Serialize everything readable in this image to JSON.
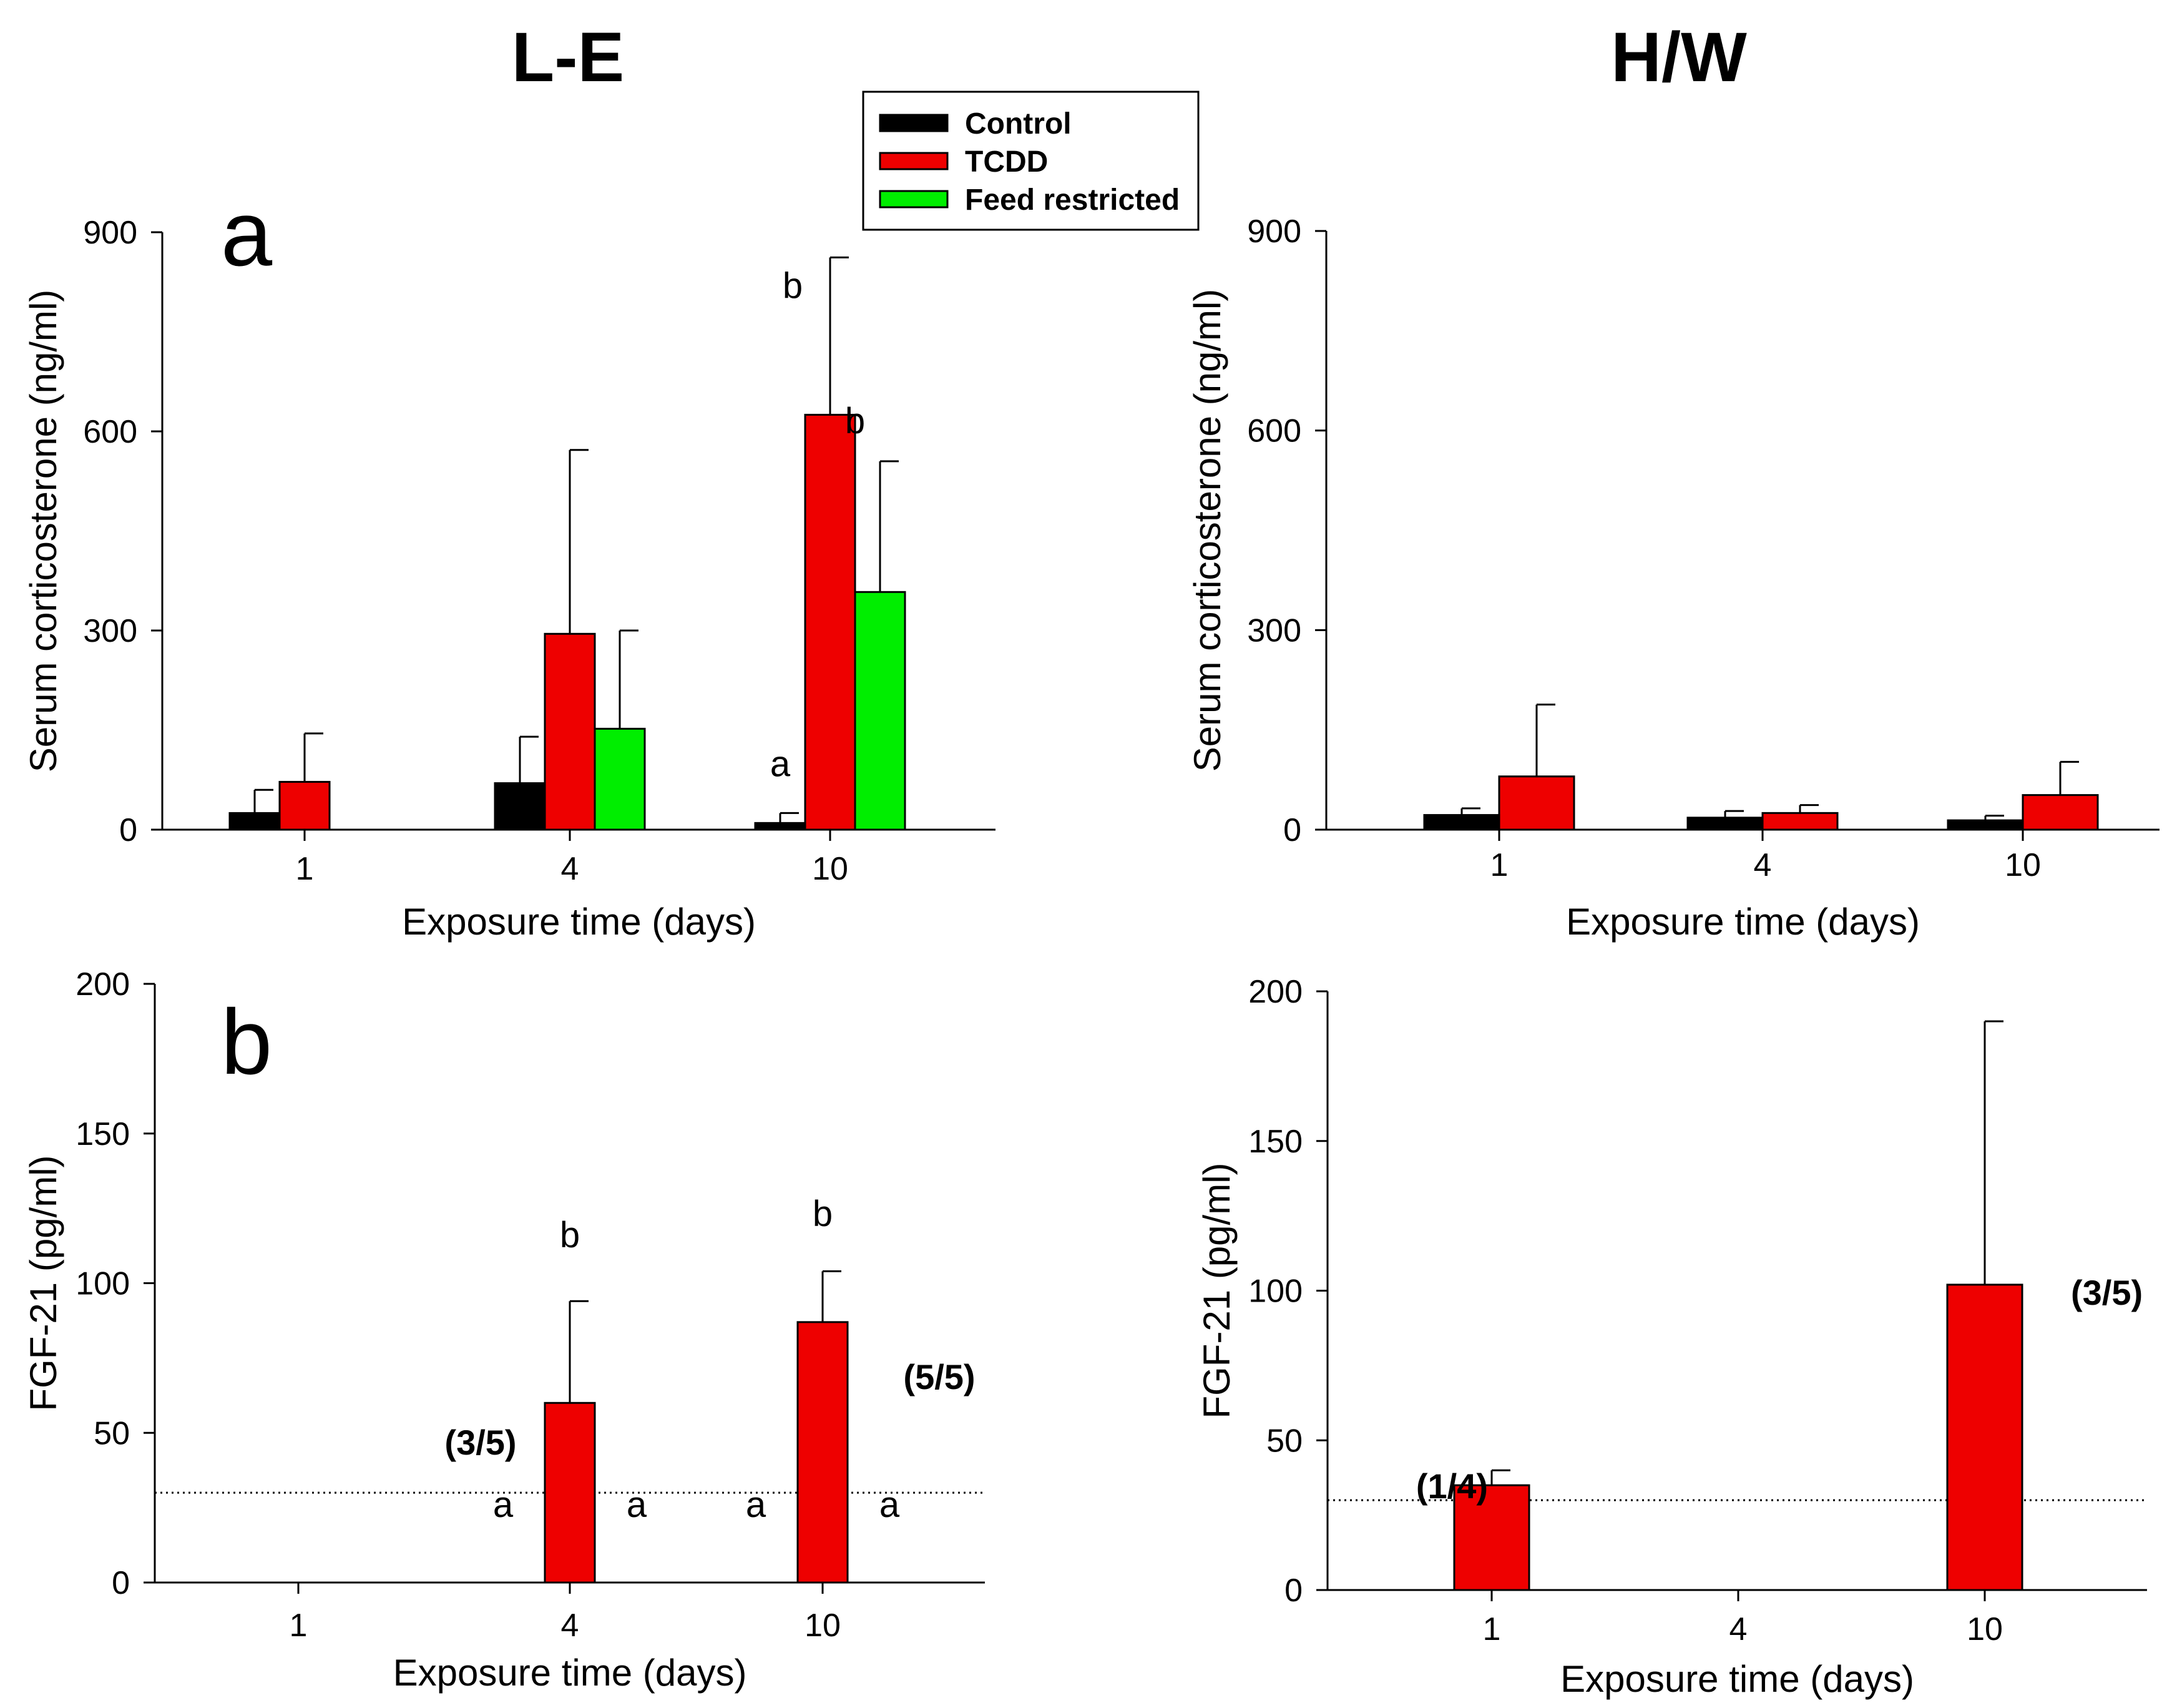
{
  "figure": {
    "column_titles": [
      "L-E",
      "H/W"
    ],
    "legend": {
      "items": [
        {
          "label": "Control",
          "color": "#000000"
        },
        {
          "label": "TCDD",
          "color": "#ee0000"
        },
        {
          "label": "Feed restricted",
          "color": "#00ee00"
        }
      ]
    }
  },
  "chart_data": [
    {
      "id": "le_cort",
      "type": "bar",
      "strain": "L-E",
      "panel_letter": "a",
      "ylabel": "Serum corticosterone (ng/ml)",
      "xlabel": "Exposure time (days)",
      "ylim": [
        0,
        900
      ],
      "yticks": [
        0,
        300,
        600,
        900
      ],
      "categories": [
        "1",
        "4",
        "10"
      ],
      "legend": "top-right",
      "series": [
        {
          "name": "Control",
          "color": "#000000",
          "values": [
            25,
            70,
            10
          ],
          "errors": [
            35,
            70,
            15
          ]
        },
        {
          "name": "TCDD",
          "color": "#ee0000",
          "values": [
            72,
            295,
            625
          ],
          "errors": [
            73,
            277,
            237
          ]
        },
        {
          "name": "Feed restricted",
          "color": "#00ee00",
          "values": [
            null,
            152,
            358
          ],
          "errors": [
            null,
            148,
            197
          ]
        }
      ],
      "annotations": [
        {
          "category": "10",
          "series": "Control",
          "text": "a"
        },
        {
          "category": "10",
          "series": "TCDD",
          "text": "b"
        },
        {
          "category": "10",
          "series": "Feed restricted",
          "text": "b"
        }
      ]
    },
    {
      "id": "hw_cort",
      "type": "bar",
      "strain": "H/W",
      "panel_letter": "",
      "ylabel": "Serum corticosterone (ng/ml)",
      "xlabel": "Exposure time (days)",
      "ylim": [
        0,
        900
      ],
      "yticks": [
        0,
        300,
        600,
        900
      ],
      "categories": [
        "1",
        "4",
        "10"
      ],
      "series": [
        {
          "name": "Control",
          "color": "#000000",
          "values": [
            22,
            18,
            14
          ],
          "errors": [
            10,
            10,
            7
          ]
        },
        {
          "name": "TCDD",
          "color": "#ee0000",
          "values": [
            80,
            25,
            52
          ],
          "errors": [
            108,
            12,
            50
          ]
        }
      ],
      "annotations": []
    },
    {
      "id": "le_fgf",
      "type": "bar",
      "strain": "L-E",
      "panel_letter": "b",
      "ylabel": "FGF-21 (pg/ml)",
      "xlabel": "Exposure time (days)",
      "ylim": [
        0,
        200
      ],
      "yticks": [
        0,
        50,
        100,
        150,
        200
      ],
      "categories": [
        "1",
        "4",
        "10"
      ],
      "detection_limit": 30,
      "series": [
        {
          "name": "TCDD",
          "color": "#ee0000",
          "values": [
            null,
            60,
            87
          ],
          "errors": [
            null,
            34,
            17
          ]
        }
      ],
      "annotations": [
        {
          "category": "4",
          "side": "left",
          "text": "a"
        },
        {
          "category": "4",
          "side": "right",
          "text": "a"
        },
        {
          "category": "4",
          "side": "top",
          "text": "b"
        },
        {
          "category": "10",
          "side": "left",
          "text": "a"
        },
        {
          "category": "10",
          "side": "right",
          "text": "a"
        },
        {
          "category": "10",
          "side": "top",
          "text": "b"
        }
      ],
      "ratios": [
        {
          "category": "4",
          "text": "(3/5)"
        },
        {
          "category": "10",
          "text": "(5/5)"
        }
      ]
    },
    {
      "id": "hw_fgf",
      "type": "bar",
      "strain": "H/W",
      "panel_letter": "",
      "ylabel": "FGF-21 (pg/ml)",
      "xlabel": "Exposure time (days)",
      "ylim": [
        0,
        200
      ],
      "yticks": [
        0,
        50,
        100,
        150,
        200
      ],
      "categories": [
        "1",
        "4",
        "10"
      ],
      "detection_limit": 30,
      "series": [
        {
          "name": "TCDD",
          "color": "#ee0000",
          "values": [
            35,
            null,
            102
          ],
          "errors": [
            5,
            null,
            88
          ]
        }
      ],
      "annotations": [],
      "ratios": [
        {
          "category": "1",
          "text": "(1/4)"
        },
        {
          "category": "10",
          "text": "(3/5)"
        }
      ]
    }
  ]
}
